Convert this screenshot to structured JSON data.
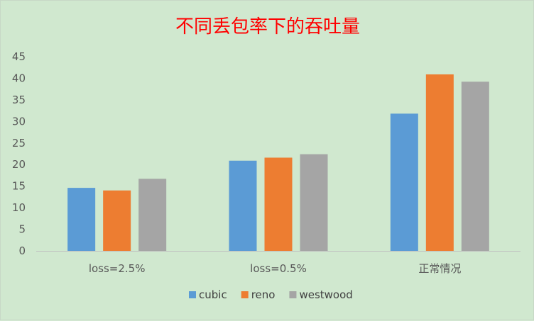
{
  "chart_data": {
    "type": "bar",
    "title": "不同丢包率下的吞吐量",
    "xlabel": "",
    "ylabel": "",
    "categories": [
      "loss=2.5%",
      "loss=0.5%",
      "正常情况"
    ],
    "series": [
      {
        "name": "cubic",
        "values": [
          14.6,
          20.9,
          31.8
        ],
        "color": "#5b9bd5"
      },
      {
        "name": "reno",
        "values": [
          14.0,
          21.6,
          40.9
        ],
        "color": "#ed7d31"
      },
      {
        "name": "westwood",
        "values": [
          16.7,
          22.4,
          39.2
        ],
        "color": "#a5a5a5"
      }
    ],
    "ylim": [
      0,
      45
    ],
    "yticks": [
      0,
      5,
      10,
      15,
      20,
      25,
      30,
      35,
      40,
      45
    ],
    "grid": false,
    "legend_position": "bottom"
  }
}
